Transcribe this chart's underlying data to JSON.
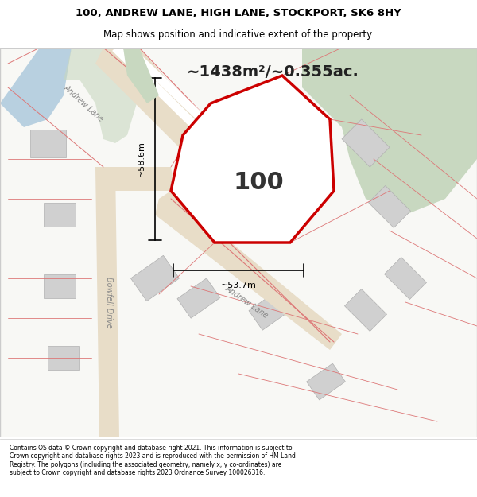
{
  "title_line1": "100, ANDREW LANE, HIGH LANE, STOCKPORT, SK6 8HY",
  "title_line2": "Map shows position and indicative extent of the property.",
  "footer_text": "Contains OS data © Crown copyright and database right 2021. This information is subject to Crown copyright and database rights 2023 and is reproduced with the permission of HM Land Registry. The polygons (including the associated geometry, namely x, y co-ordinates) are subject to Crown copyright and database rights 2023 Ordnance Survey 100026316.",
  "area_label": "~1438m²/~0.355ac.",
  "property_number": "100",
  "dim_vertical": "~58.6m",
  "dim_horizontal": "~53.7m",
  "background_color": "#f5f5f0",
  "map_bg": "#f8f8f5",
  "green_area_color": "#c8d8c0",
  "blue_area_color": "#b8d0e0",
  "road_color": "#e8e0d0",
  "plot_outline_color": "#cc0000",
  "plot_fill_color": "#ffffff",
  "building_color": "#d8d8d8",
  "dim_line_color": "#000000",
  "road_line_color": "#e08080",
  "street_label1": "Andrew Lane",
  "street_label2": "Andrew Lane",
  "street_label3": "Bowfell Drive"
}
